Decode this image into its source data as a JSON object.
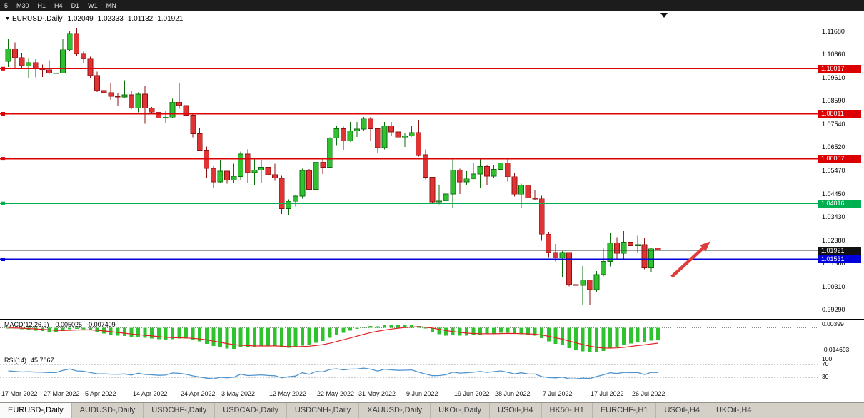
{
  "toolbar": {
    "timeframes": [
      "5",
      "M30",
      "H1",
      "H4",
      "D1",
      "W1",
      "MN"
    ]
  },
  "chart_header": {
    "dropdown_icon": "▼",
    "symbol": "EURUSD-,Daily",
    "open": "1.02049",
    "high": "1.02333",
    "low": "1.01132",
    "close": "1.01921"
  },
  "chart_data": {
    "type": "candlestick",
    "symbol": "EURUSD",
    "timeframe": "Daily",
    "candles": [
      [
        1.1035,
        1.1137,
        1.1009,
        1.109
      ],
      [
        1.109,
        1.1119,
        1.1003,
        1.1051
      ],
      [
        1.1051,
        1.1069,
        1.1,
        1.1015
      ],
      [
        1.1015,
        1.1045,
        1.0962,
        1.1028
      ],
      [
        1.1028,
        1.1044,
        1.0963,
        1.1005
      ],
      [
        1.1005,
        1.1021,
        1.0965,
        1.0997
      ],
      [
        1.0997,
        1.1039,
        1.0979,
        1.0982
      ],
      [
        1.0982,
        1.0998,
        1.0944,
        1.0983
      ],
      [
        1.0983,
        1.1137,
        1.098,
        1.1086
      ],
      [
        1.1086,
        1.1171,
        1.1083,
        1.1158
      ],
      [
        1.1158,
        1.1184,
        1.106,
        1.1067
      ],
      [
        1.1067,
        1.1077,
        1.1027,
        1.1045
      ],
      [
        1.1045,
        1.1055,
        1.096,
        1.0972
      ],
      [
        1.0972,
        1.0988,
        1.0898,
        1.0905
      ],
      [
        1.0905,
        1.0937,
        1.0874,
        1.0895
      ],
      [
        1.0895,
        1.0939,
        1.0863,
        1.0879
      ],
      [
        1.0879,
        1.0892,
        1.0836,
        1.0876
      ],
      [
        1.0876,
        1.095,
        1.087,
        1.0885
      ],
      [
        1.0885,
        1.0905,
        1.0821,
        1.0827
      ],
      [
        1.0827,
        1.0896,
        1.0808,
        1.0888
      ],
      [
        1.0888,
        1.0923,
        1.0757,
        1.0827
      ],
      [
        1.0827,
        1.0832,
        1.0799,
        1.0808
      ],
      [
        1.0808,
        1.0822,
        1.0769,
        1.0781
      ],
      [
        1.0781,
        1.0815,
        1.0761,
        1.0786
      ],
      [
        1.0786,
        1.0867,
        1.0782,
        1.0853
      ],
      [
        1.0853,
        1.0937,
        1.0824,
        1.0838
      ],
      [
        1.0838,
        1.0852,
        1.077,
        1.0795
      ],
      [
        1.0795,
        1.08,
        1.0697,
        1.0712
      ],
      [
        1.0712,
        1.0738,
        1.0635,
        1.0639
      ],
      [
        1.0639,
        1.0655,
        1.0514,
        1.0558
      ],
      [
        1.0558,
        1.0567,
        1.0471,
        1.0498
      ],
      [
        1.0498,
        1.0593,
        1.0492,
        1.0545
      ],
      [
        1.0545,
        1.0547,
        1.049,
        1.0505
      ],
      [
        1.0505,
        1.0578,
        1.0495,
        1.0522
      ],
      [
        1.0522,
        1.0632,
        1.0507,
        1.0622
      ],
      [
        1.0622,
        1.0642,
        1.0492,
        1.054
      ],
      [
        1.054,
        1.0599,
        1.0483,
        1.0551
      ],
      [
        1.0551,
        1.0594,
        1.0495,
        1.0563
      ],
      [
        1.0563,
        1.0585,
        1.0523,
        1.0529
      ],
      [
        1.0529,
        1.0579,
        1.0503,
        1.0514
      ],
      [
        1.0514,
        1.0525,
        1.0354,
        1.0379
      ],
      [
        1.0379,
        1.042,
        1.0348,
        1.0411
      ],
      [
        1.0411,
        1.0437,
        1.0388,
        1.0434
      ],
      [
        1.0434,
        1.0556,
        1.0423,
        1.0548
      ],
      [
        1.0548,
        1.0555,
        1.0459,
        1.0464
      ],
      [
        1.0464,
        1.0607,
        1.046,
        1.0586
      ],
      [
        1.0586,
        1.0603,
        1.0532,
        1.0563
      ],
      [
        1.0563,
        1.0697,
        1.0561,
        1.0692
      ],
      [
        1.0692,
        1.0748,
        1.0662,
        1.0734
      ],
      [
        1.0734,
        1.0744,
        1.0641,
        1.068
      ],
      [
        1.068,
        1.0765,
        1.0677,
        1.0724
      ],
      [
        1.0724,
        1.0765,
        1.0698,
        1.0733
      ],
      [
        1.0733,
        1.0786,
        1.0727,
        1.0778
      ],
      [
        1.0778,
        1.0787,
        1.0678,
        1.0734
      ],
      [
        1.0734,
        1.0739,
        1.0627,
        1.065
      ],
      [
        1.065,
        1.0764,
        1.0642,
        1.0747
      ],
      [
        1.0747,
        1.0765,
        1.0704,
        1.072
      ],
      [
        1.072,
        1.0746,
        1.0684,
        1.0697
      ],
      [
        1.0697,
        1.0714,
        1.0653,
        1.0703
      ],
      [
        1.0703,
        1.0749,
        1.07,
        1.0717
      ],
      [
        1.0717,
        1.0774,
        1.0611,
        1.0618
      ],
      [
        1.0618,
        1.0643,
        1.0508,
        1.0518
      ],
      [
        1.0518,
        1.052,
        1.0399,
        1.0409
      ],
      [
        1.0409,
        1.0484,
        1.0397,
        1.0413
      ],
      [
        1.0413,
        1.0507,
        1.0359,
        1.0444
      ],
      [
        1.0444,
        1.0601,
        1.0381,
        1.055
      ],
      [
        1.055,
        1.0557,
        1.0443,
        1.0498
      ],
      [
        1.0498,
        1.0546,
        1.0483,
        1.0511
      ],
      [
        1.0511,
        1.0583,
        1.0508,
        1.0533
      ],
      [
        1.0533,
        1.0605,
        1.0469,
        1.0566
      ],
      [
        1.0566,
        1.057,
        1.0482,
        1.0523
      ],
      [
        1.0523,
        1.0572,
        1.0517,
        1.0553
      ],
      [
        1.0553,
        1.0615,
        1.0548,
        1.0582
      ],
      [
        1.0582,
        1.0606,
        1.05,
        1.0521
      ],
      [
        1.0521,
        1.0536,
        1.0433,
        1.0443
      ],
      [
        1.0443,
        1.0489,
        1.0381,
        1.0483
      ],
      [
        1.0483,
        1.0486,
        1.0366,
        1.0426
      ],
      [
        1.0426,
        1.0461,
        1.0417,
        1.0422
      ],
      [
        1.0422,
        1.0435,
        1.0235,
        1.0265
      ],
      [
        1.0265,
        1.0276,
        1.0162,
        1.0184
      ],
      [
        1.0184,
        1.0221,
        1.0144,
        1.016
      ],
      [
        1.016,
        1.019,
        1.0072,
        1.0183
      ],
      [
        1.0183,
        1.0184,
        1.0032,
        1.004
      ],
      [
        1.004,
        1.0074,
        0.9999,
        1.0037
      ],
      [
        1.0037,
        1.0122,
        0.9952,
        1.006
      ],
      [
        1.006,
        1.0062,
        0.995,
        1.0019
      ],
      [
        1.0019,
        1.0101,
        1.0005,
        1.0085
      ],
      [
        1.0085,
        1.0201,
        1.0077,
        1.0143
      ],
      [
        1.0143,
        1.0269,
        1.0121,
        1.0225
      ],
      [
        1.0225,
        1.0251,
        1.0155,
        1.018
      ],
      [
        1.018,
        1.0279,
        1.0151,
        1.0229
      ],
      [
        1.0229,
        1.0257,
        1.0129,
        1.0213
      ],
      [
        1.0213,
        1.0258,
        1.0183,
        1.0219
      ],
      [
        1.0219,
        1.025,
        1.0108,
        1.0115
      ],
      [
        1.0115,
        1.0205,
        1.0097,
        1.02
      ],
      [
        1.02049,
        1.02333,
        1.01132,
        1.01921
      ]
    ],
    "date_labels": [
      {
        "label": "17 Mar 2022",
        "index": 0
      },
      {
        "label": "27 Mar 2022",
        "index": 7
      },
      {
        "label": "5 Apr 2022",
        "index": 13
      },
      {
        "label": "14 Apr 2022",
        "index": 20
      },
      {
        "label": "24 Apr 2022",
        "index": 27
      },
      {
        "label": "3 May 2022",
        "index": 33
      },
      {
        "label": "12 May 2022",
        "index": 40
      },
      {
        "label": "22 May 2022",
        "index": 47
      },
      {
        "label": "31 May 2022",
        "index": 53
      },
      {
        "label": "9 Jun 2022",
        "index": 60
      },
      {
        "label": "19 Jun 2022",
        "index": 67
      },
      {
        "label": "28 Jun 2022",
        "index": 73
      },
      {
        "label": "7 Jul 2022",
        "index": 80
      },
      {
        "label": "17 Jul 2022",
        "index": 87
      },
      {
        "label": "26 Jul 2022",
        "index": 93
      }
    ],
    "y_axis_ticks": [
      "1.11680",
      "1.10660",
      "1.09610",
      "1.08590",
      "1.07540",
      "1.06520",
      "1.05470",
      "1.04450",
      "1.03430",
      "1.02380",
      "1.01360",
      "1.00310",
      "0.99290"
    ],
    "levels": [
      {
        "price": 1.10017,
        "label": "1.10017",
        "color": "#dd0000"
      },
      {
        "price": 1.08011,
        "label": "1.08011",
        "color": "#dd0000"
      },
      {
        "price": 1.06007,
        "label": "1.06007",
        "color": "#dd0000"
      },
      {
        "price": 1.04016,
        "label": "1.04016",
        "color": "#00b050"
      },
      {
        "price": 1.01531,
        "label": "1.01531",
        "color": "#0000dd"
      }
    ],
    "current_price": {
      "value": 1.01921,
      "label": "1.01921",
      "line_color": "#3a3a3a",
      "badge_color": "#111111"
    },
    "arrow": {
      "color": "#e03c3c",
      "from": {
        "index": 97,
        "price": 1.0075
      },
      "to": {
        "index": 102,
        "price": 1.0215
      }
    },
    "indicators": {
      "macd": {
        "label": "MACD(12,26,9)",
        "value_main": "-0.005025",
        "value_signal": "-0.007409",
        "scale_top": "0.00399",
        "scale_bottom": "-0.014693",
        "fast": 12,
        "slow": 26,
        "signal": 9,
        "histogram_color": "#2ec22e",
        "signal_color": "#e02020"
      },
      "rsi": {
        "label": "RSI(14)",
        "value": "45.7867",
        "period": 14,
        "scale_labels": [
          "100",
          "70",
          "30"
        ],
        "levels": [
          70,
          30
        ],
        "line_color": "#4f94cd"
      }
    },
    "colors": {
      "candle_up": "#2fc12f",
      "candle_up_border": "#0d6e0d",
      "candle_down": "#e03434",
      "candle_down_border": "#8f1212",
      "background": "#ffffff",
      "axis_text": "#000000"
    }
  },
  "tabs": [
    {
      "label": "EURUSD-,Daily",
      "active": true
    },
    {
      "label": "AUDUSD-,Daily",
      "active": false
    },
    {
      "label": "USDCHF-,Daily",
      "active": false
    },
    {
      "label": "USDCAD-,Daily",
      "active": false
    },
    {
      "label": "USDCNH-,Daily",
      "active": false
    },
    {
      "label": "XAUUSD-,Daily",
      "active": false
    },
    {
      "label": "UKOil-,Daily",
      "active": false
    },
    {
      "label": "USOil-,H4",
      "active": false
    },
    {
      "label": "HK50-,H1",
      "active": false
    },
    {
      "label": "EURCHF-,H1",
      "active": false
    },
    {
      "label": "USOil-,H4",
      "active": false
    },
    {
      "label": "UKOil-,H4",
      "active": false
    }
  ]
}
